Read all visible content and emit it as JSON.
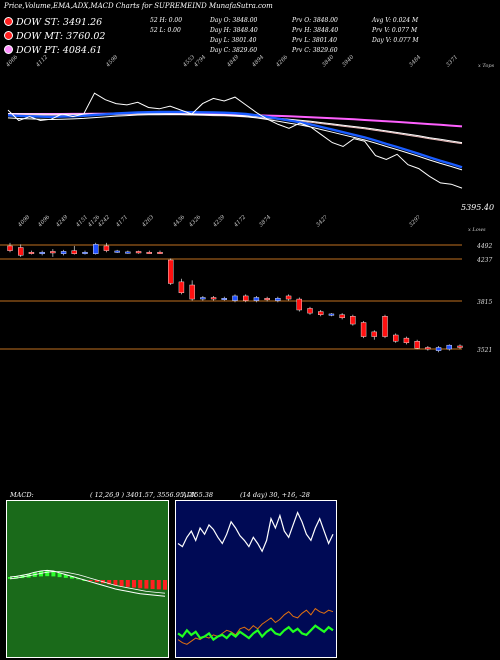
{
  "header": {
    "title": "Price,Volume,EMA,ADX,MACD Charts for SUPREMEIND MunafaSutra.com",
    "legend": [
      {
        "label": "DOW ST: 3491.26",
        "color": "#ff2020"
      },
      {
        "label": "DOW MT: 3760.02",
        "color": "#ff2020"
      },
      {
        "label": "DOW PT: 4084.61",
        "color": "#ff90ff"
      }
    ],
    "stats": {
      "col1": [
        "",
        "52 H: 0.00",
        "52 L: 0.00"
      ],
      "col2": [
        "Day O: 3848.00",
        "Day H: 3848.40",
        "Day L: 3801.40",
        "Day C: 3829.60"
      ],
      "col3": [
        "Prv O: 3848.00",
        "Prv H: 3848.40",
        "Prv L: 3801.40",
        "Prv C: 3829.60"
      ],
      "col4": [
        "Avg V: 0.024 M",
        "Prv V: 0.077 M",
        "Day V: 0.077 M"
      ]
    }
  },
  "colors": {
    "up_candle": "#2050ff",
    "down_candle": "#ff1010",
    "price_line": "#ffffff",
    "ema_blue": "#1a5cff",
    "ema_pink": "#ff60ff",
    "support_line": "#c07020",
    "macd_bg": "#1a6a1a",
    "adx_bg": "#000a55"
  },
  "chart_data": [
    {
      "type": "line",
      "name": "price-ema-panel",
      "top_labels": [
        "4066",
        "4112",
        "4598",
        "4553",
        "4794",
        "4849",
        "4894",
        "4266",
        "3840",
        "3940",
        "3484",
        "3371"
      ],
      "corner_label": "x Tops",
      "last_value_label": "5395.40",
      "price": [
        4430,
        4350,
        4380,
        4350,
        4360,
        4400,
        4380,
        4400,
        4560,
        4510,
        4480,
        4470,
        4490,
        4450,
        4440,
        4460,
        4430,
        4400,
        4480,
        4520,
        4500,
        4530,
        4470,
        4410,
        4360,
        4320,
        4290,
        4330,
        4300,
        4240,
        4180,
        4150,
        4210,
        4190,
        4080,
        4050,
        4090,
        4010,
        3980,
        3920,
        3870,
        3860,
        3830
      ],
      "ema_fast": [
        4390,
        4385,
        4382,
        4380,
        4378,
        4380,
        4382,
        4386,
        4392,
        4398,
        4404,
        4408,
        4412,
        4414,
        4415,
        4416,
        4416,
        4414,
        4413,
        4412,
        4410,
        4406,
        4400,
        4390,
        4378,
        4364,
        4350,
        4336,
        4320,
        4300,
        4280,
        4260,
        4240,
        4220,
        4196,
        4170,
        4146,
        4120,
        4094,
        4066,
        4040,
        4016,
        3990
      ],
      "ema_slow": [
        4395,
        4394,
        4393,
        4392,
        4391,
        4391,
        4391,
        4392,
        4393,
        4394,
        4395,
        4396,
        4396,
        4396,
        4396,
        4395,
        4394,
        4392,
        4390,
        4388,
        4386,
        4382,
        4378,
        4372,
        4366,
        4360,
        4352,
        4344,
        4336,
        4326,
        4316,
        4306,
        4296,
        4286,
        4274,
        4262,
        4250,
        4237,
        4224,
        4210,
        4197,
        4184,
        4172
      ],
      "ema_pink": [
        4400,
        4400,
        4400,
        4400,
        4400,
        4400,
        4401,
        4401,
        4402,
        4402,
        4403,
        4403,
        4403,
        4403,
        4403,
        4402,
        4401,
        4400,
        4399,
        4398,
        4397,
        4395,
        4393,
        4391,
        4388,
        4385,
        4382,
        4379,
        4375,
        4371,
        4367,
        4363,
        4359,
        4354,
        4349,
        4344,
        4339,
        4334,
        4328,
        4322,
        4317,
        4311,
        4305
      ]
    },
    {
      "type": "bar",
      "name": "candle-panel",
      "top_labels": [
        "4098",
        "4096",
        "4249",
        "4151",
        "4126",
        "4242",
        "4171",
        "4263",
        "4436",
        "4326",
        "4239",
        "4172",
        "3874",
        "3427",
        "3297"
      ],
      "corner_label": "x Lows",
      "levels": [
        "4492",
        "4237",
        "3815",
        "3521"
      ],
      "candles": [
        {
          "o": 4230,
          "c": 4200,
          "h": 4250,
          "l": 4190
        },
        {
          "o": 4220,
          "c": 4170,
          "h": 4240,
          "l": 4160
        },
        {
          "o": 4190,
          "c": 4185,
          "h": 4200,
          "l": 4175
        },
        {
          "o": 4180,
          "c": 4190,
          "h": 4200,
          "l": 4170
        },
        {
          "o": 4195,
          "c": 4185,
          "h": 4210,
          "l": 4160
        },
        {
          "o": 4180,
          "c": 4195,
          "h": 4205,
          "l": 4170
        },
        {
          "o": 4200,
          "c": 4180,
          "h": 4230,
          "l": 4175
        },
        {
          "o": 4185,
          "c": 4190,
          "h": 4200,
          "l": 4175
        },
        {
          "o": 4180,
          "c": 4240,
          "h": 4250,
          "l": 4175
        },
        {
          "o": 4230,
          "c": 4200,
          "h": 4250,
          "l": 4190
        },
        {
          "o": 4195,
          "c": 4198,
          "h": 4205,
          "l": 4185
        },
        {
          "o": 4190,
          "c": 4192,
          "h": 4200,
          "l": 4180
        },
        {
          "o": 4195,
          "c": 4185,
          "h": 4200,
          "l": 4180
        },
        {
          "o": 4190,
          "c": 4188,
          "h": 4200,
          "l": 4180
        },
        {
          "o": 4190,
          "c": 4186,
          "h": 4200,
          "l": 4180
        },
        {
          "o": 4140,
          "c": 3990,
          "h": 4150,
          "l": 3980
        },
        {
          "o": 4000,
          "c": 3930,
          "h": 4020,
          "l": 3920
        },
        {
          "o": 3980,
          "c": 3890,
          "h": 4010,
          "l": 3880
        },
        {
          "o": 3890,
          "c": 3900,
          "h": 3910,
          "l": 3880
        },
        {
          "o": 3900,
          "c": 3890,
          "h": 3910,
          "l": 3880
        },
        {
          "o": 3890,
          "c": 3895,
          "h": 3905,
          "l": 3880
        },
        {
          "o": 3880,
          "c": 3910,
          "h": 3920,
          "l": 3870
        },
        {
          "o": 3910,
          "c": 3880,
          "h": 3920,
          "l": 3870
        },
        {
          "o": 3880,
          "c": 3900,
          "h": 3910,
          "l": 3870
        },
        {
          "o": 3895,
          "c": 3885,
          "h": 3905,
          "l": 3875
        },
        {
          "o": 3880,
          "c": 3895,
          "h": 3905,
          "l": 3870
        },
        {
          "o": 3910,
          "c": 3890,
          "h": 3920,
          "l": 3880
        },
        {
          "o": 3890,
          "c": 3820,
          "h": 3900,
          "l": 3810
        },
        {
          "o": 3830,
          "c": 3800,
          "h": 3840,
          "l": 3790
        },
        {
          "o": 3810,
          "c": 3790,
          "h": 3820,
          "l": 3780
        },
        {
          "o": 3790,
          "c": 3795,
          "h": 3800,
          "l": 3780
        },
        {
          "o": 3790,
          "c": 3770,
          "h": 3800,
          "l": 3760
        },
        {
          "o": 3780,
          "c": 3730,
          "h": 3790,
          "l": 3720
        },
        {
          "o": 3740,
          "c": 3650,
          "h": 3750,
          "l": 3640
        },
        {
          "o": 3680,
          "c": 3650,
          "h": 3690,
          "l": 3630
        },
        {
          "o": 3780,
          "c": 3650,
          "h": 3790,
          "l": 3640
        },
        {
          "o": 3660,
          "c": 3620,
          "h": 3670,
          "l": 3610
        },
        {
          "o": 3640,
          "c": 3610,
          "h": 3650,
          "l": 3600
        },
        {
          "o": 3620,
          "c": 3575,
          "h": 3630,
          "l": 3570
        },
        {
          "o": 3580,
          "c": 3570,
          "h": 3590,
          "l": 3560
        },
        {
          "o": 3560,
          "c": 3580,
          "h": 3590,
          "l": 3550
        },
        {
          "o": 3570,
          "c": 3595,
          "h": 3600,
          "l": 3560
        },
        {
          "o": 3590,
          "c": 3580,
          "h": 3600,
          "l": 3570
        }
      ]
    },
    {
      "type": "line",
      "name": "macd-panel",
      "label": "MACD:",
      "params": "( 12,26,9 ) 3401.57, 3556.95, -155.38",
      "macd": [
        0.5,
        0.6,
        0.8,
        1.0,
        1.3,
        1.5,
        1.6,
        1.5,
        1.2,
        0.9,
        0.6,
        0.3,
        0.0,
        -0.3,
        -0.6,
        -0.9,
        -1.2,
        -1.5,
        -1.7,
        -1.9,
        -2.1,
        -2.3,
        -2.4,
        -2.5,
        -2.6,
        -2.7
      ],
      "signal": [
        0.2,
        0.3,
        0.5,
        0.7,
        0.9,
        1.1,
        1.3,
        1.4,
        1.4,
        1.3,
        1.1,
        0.9,
        0.6,
        0.3,
        0.0,
        -0.3,
        -0.6,
        -0.9,
        -1.1,
        -1.3,
        -1.5,
        -1.7,
        -1.9,
        -2.0,
        -2.1,
        -2.2
      ]
    },
    {
      "type": "line",
      "name": "adx-panel",
      "label": "ADX",
      "params": "(14 day) 30, +16, -28",
      "adx": [
        70,
        68,
        74,
        78,
        72,
        80,
        76,
        82,
        79,
        74,
        70,
        76,
        84,
        80,
        75,
        72,
        68,
        74,
        70,
        65,
        72,
        86,
        80,
        88,
        78,
        74,
        82,
        90,
        84,
        76,
        72,
        80,
        86,
        78,
        70,
        76
      ],
      "plus_di": [
        12,
        10,
        14,
        11,
        13,
        9,
        10,
        12,
        8,
        10,
        11,
        9,
        12,
        10,
        13,
        11,
        9,
        12,
        14,
        10,
        13,
        15,
        12,
        11,
        14,
        16,
        13,
        15,
        12,
        11,
        14,
        17,
        15,
        13,
        16,
        14
      ],
      "minus_di": [
        8,
        6,
        5,
        7,
        9,
        8,
        10,
        9,
        11,
        10,
        12,
        14,
        13,
        11,
        15,
        16,
        14,
        17,
        15,
        18,
        20,
        22,
        19,
        21,
        24,
        26,
        23,
        22,
        25,
        27,
        24,
        28,
        26,
        25,
        27,
        26
      ]
    }
  ]
}
